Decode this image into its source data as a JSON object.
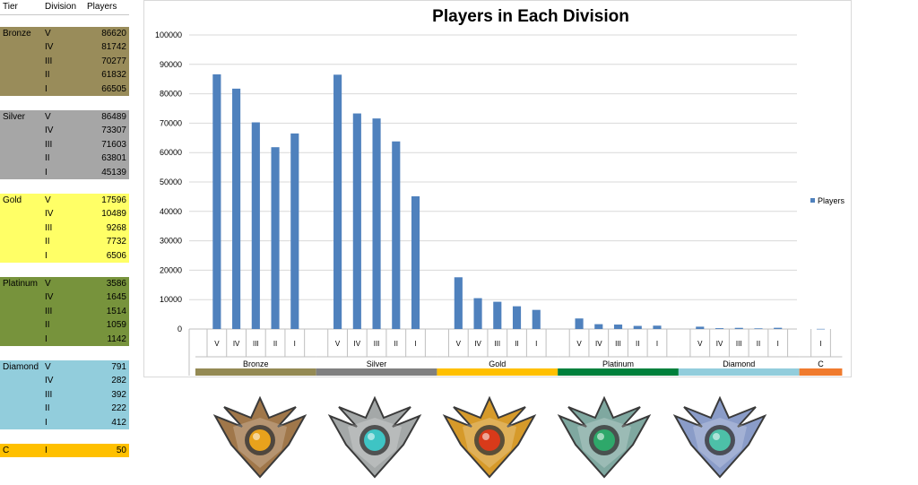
{
  "sheet": {
    "headers": [
      "Tier",
      "Division",
      "Players"
    ],
    "groups": [
      {
        "tier": "Bronze",
        "color": "#998c5a",
        "rows": [
          {
            "division": "V",
            "players": "86620"
          },
          {
            "division": "IV",
            "players": "81742"
          },
          {
            "division": "III",
            "players": "70277"
          },
          {
            "division": "II",
            "players": "61832"
          },
          {
            "division": "I",
            "players": "66505"
          }
        ]
      },
      {
        "tier": "Silver",
        "color": "#a6a6a6",
        "rows": [
          {
            "division": "V",
            "players": "86489"
          },
          {
            "division": "IV",
            "players": "73307"
          },
          {
            "division": "III",
            "players": "71603"
          },
          {
            "division": "II",
            "players": "63801"
          },
          {
            "division": "I",
            "players": "45139"
          }
        ]
      },
      {
        "tier": "Gold",
        "color": "#ffff66",
        "rows": [
          {
            "division": "V",
            "players": "17596"
          },
          {
            "division": "IV",
            "players": "10489"
          },
          {
            "division": "III",
            "players": "9268"
          },
          {
            "division": "II",
            "players": "7732"
          },
          {
            "division": "I",
            "players": "6506"
          }
        ]
      },
      {
        "tier": "Platinum",
        "color": "#77933c",
        "rows": [
          {
            "division": "V",
            "players": "3586"
          },
          {
            "division": "IV",
            "players": "1645"
          },
          {
            "division": "III",
            "players": "1514"
          },
          {
            "division": "II",
            "players": "1059"
          },
          {
            "division": "I",
            "players": "1142"
          }
        ]
      },
      {
        "tier": "Diamond",
        "color": "#92cddc",
        "rows": [
          {
            "division": "V",
            "players": "791"
          },
          {
            "division": "IV",
            "players": "282"
          },
          {
            "division": "III",
            "players": "392"
          },
          {
            "division": "II",
            "players": "222"
          },
          {
            "division": "I",
            "players": "412"
          }
        ]
      },
      {
        "tier": "C",
        "color": "#ffc000",
        "rows": [
          {
            "division": "I",
            "players": "50"
          }
        ]
      }
    ]
  },
  "chart_data": {
    "type": "bar",
    "title": "Players in Each Division",
    "xlabel": "",
    "ylabel": "",
    "ylim": [
      0,
      100000
    ],
    "yticks": [
      "0",
      "10000",
      "20000",
      "30000",
      "40000",
      "50000",
      "60000",
      "70000",
      "80000",
      "90000",
      "100000"
    ],
    "grid": true,
    "legend_position": "right",
    "bar_color": "#4f81bd",
    "series": [
      {
        "name": "Players",
        "values": [
          86620,
          81742,
          70277,
          61832,
          66505,
          86489,
          73307,
          71603,
          63801,
          45139,
          17596,
          10489,
          9268,
          7732,
          6506,
          3586,
          1645,
          1514,
          1059,
          1142,
          791,
          282,
          392,
          222,
          412,
          50
        ]
      }
    ],
    "groups": [
      {
        "name": "Bronze",
        "color": "#948a54",
        "divisions": [
          "V",
          "IV",
          "III",
          "II",
          "I"
        ]
      },
      {
        "name": "Silver",
        "color": "#808080",
        "divisions": [
          "V",
          "IV",
          "III",
          "II",
          "I"
        ]
      },
      {
        "name": "Gold",
        "color": "#ffc000",
        "divisions": [
          "V",
          "IV",
          "III",
          "II",
          "I"
        ]
      },
      {
        "name": "Platinum",
        "color": "#00803c",
        "divisions": [
          "V",
          "IV",
          "III",
          "II",
          "I"
        ]
      },
      {
        "name": "Diamond",
        "color": "#92cddc",
        "divisions": [
          "V",
          "IV",
          "III",
          "II",
          "I"
        ]
      },
      {
        "name": "C",
        "color": "#f07b2e",
        "divisions": [
          "I"
        ]
      }
    ]
  },
  "badges": [
    {
      "name": "bronze-badge-icon",
      "metal": "#a0774a",
      "gem": "#e8a21c"
    },
    {
      "name": "silver-badge-icon",
      "metal": "#a4a8a8",
      "gem": "#3ec4c4"
    },
    {
      "name": "gold-badge-icon",
      "metal": "#d69a2a",
      "gem": "#d83a1a"
    },
    {
      "name": "platinum-badge-icon",
      "metal": "#7fa8a0",
      "gem": "#2ea86a"
    },
    {
      "name": "diamond-badge-icon",
      "metal": "#8a9cc8",
      "gem": "#4dc0a8"
    }
  ]
}
